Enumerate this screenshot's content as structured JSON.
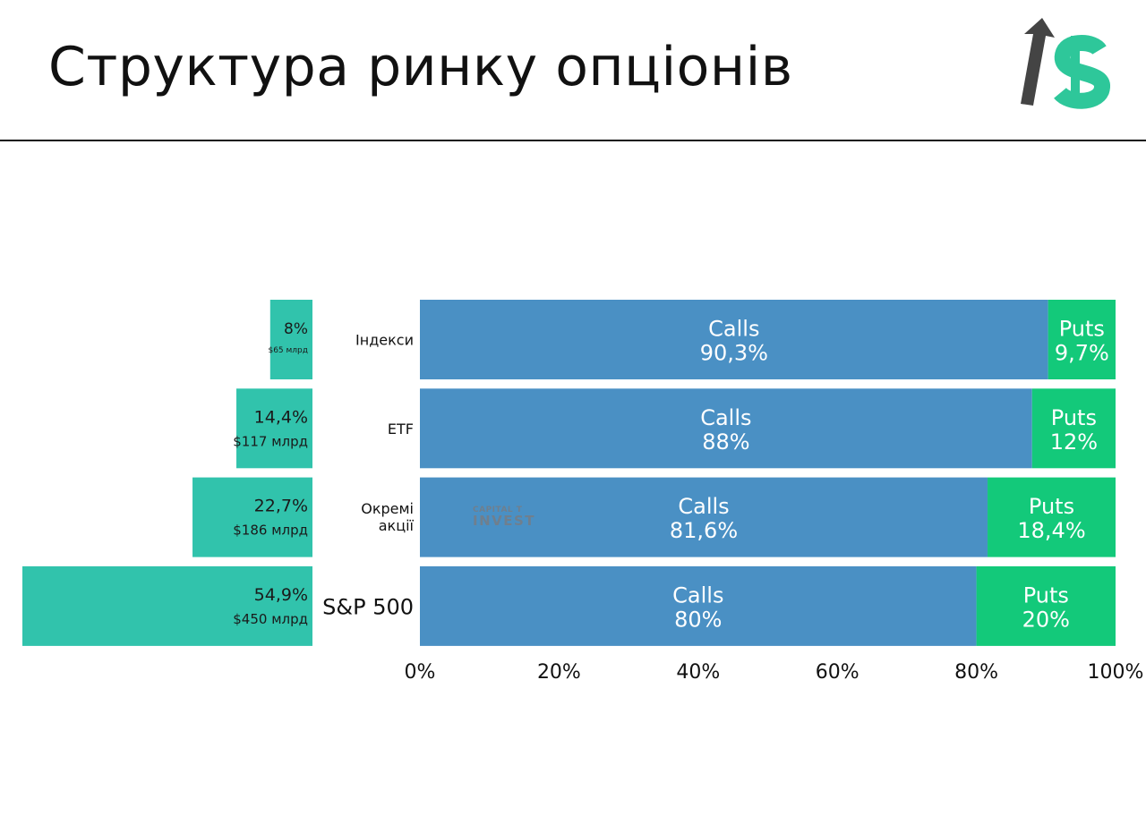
{
  "page": {
    "title": "Структура ринку опціонів",
    "logo_icon": "arrow-dollar-icon",
    "watermark_line1": "CAPITAL T",
    "watermark_line2": "INVEST"
  },
  "colors": {
    "calls": "#4a90c4",
    "puts": "#13c97a",
    "market_share": "#31c3ac",
    "logo_arrow": "#444444",
    "logo_dollar": "#2ec79a"
  },
  "chart_data": [
    {
      "type": "bar",
      "orientation": "horizontal-left",
      "categories": [
        "Індекси",
        "ETF",
        "Окремі акції",
        "S&P 500"
      ],
      "values": [
        8,
        14.4,
        22.7,
        54.9
      ],
      "value_labels": [
        "8%",
        "14,4%",
        "22,7%",
        "54,9%"
      ],
      "volume_labels": [
        "$65 млрд",
        "$117 млрд",
        "$186 млрд",
        "$450 млрд"
      ],
      "unit": "%"
    },
    {
      "type": "bar",
      "orientation": "horizontal-stacked-100",
      "categories": [
        "Індекси",
        "ETF",
        "Окремі акції",
        "S&P 500"
      ],
      "category_lines": [
        [
          "Індекси"
        ],
        [
          "ETF"
        ],
        [
          "Окремі",
          "акції"
        ],
        [
          "S&P 500"
        ]
      ],
      "series": [
        {
          "name": "Calls",
          "values": [
            90.3,
            88,
            81.6,
            80
          ],
          "labels": [
            "90,3%",
            "88%",
            "81,6%",
            "80%"
          ]
        },
        {
          "name": "Puts",
          "values": [
            9.7,
            12,
            18.4,
            20
          ],
          "labels": [
            "9,7%",
            "12%",
            "18,4%",
            "20%"
          ]
        }
      ],
      "xlim": [
        0,
        100
      ],
      "xticks": [
        "0%",
        "20%",
        "40%",
        "60%",
        "80%",
        "100%"
      ],
      "grid": false,
      "legend": "none"
    }
  ]
}
